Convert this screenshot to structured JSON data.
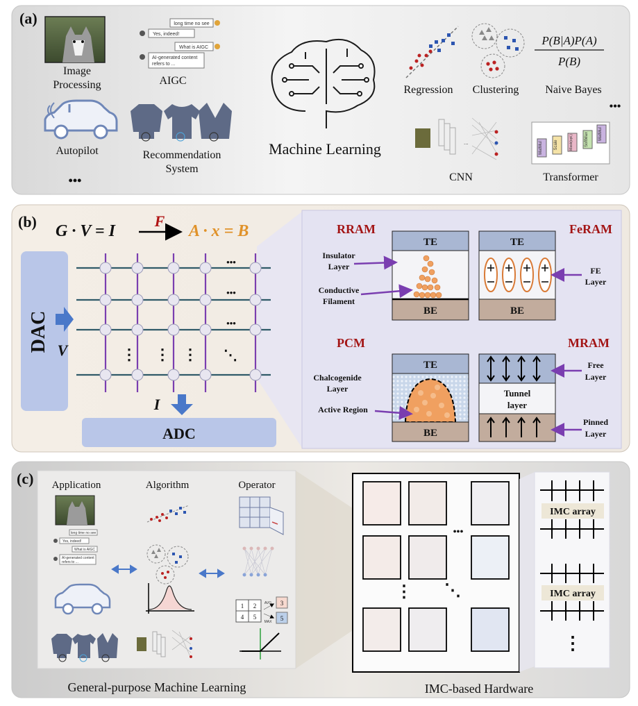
{
  "panel_a": {
    "label": "(a)",
    "center": "Machine Learning",
    "image_processing": [
      "Image",
      "Processing"
    ],
    "aigc": "AIGC",
    "autopilot": "Autopilot",
    "recsys": [
      "Recommendation",
      "System"
    ],
    "ellipsis": "•••",
    "chat": [
      "long time no see",
      "Yes, indeed!",
      "What is AIGC",
      "AI-generated content",
      "refers to ..."
    ],
    "regression": "Regression",
    "clustering": "Clustering",
    "naive_bayes": "Naive Bayes",
    "bayes_num": "P(B|A)P(A)",
    "bayes_den": "P(B)",
    "cnn": "CNN",
    "transformer": "Transformer",
    "tf_blocks": [
      "MatMul",
      "Scale",
      "Mask(opt.)",
      "SoftMax",
      "MatMul"
    ],
    "cnn_dots": "..."
  },
  "panel_b": {
    "label": "(b)",
    "eq_left": "G · V = I",
    "arrow_label": "F",
    "eq_right": "A · x = B",
    "dac": "DAC",
    "adc": "ADC",
    "v": "V",
    "i": "I",
    "dots_h": "•••",
    "dots_v": "⋮",
    "dots_d": "⋱",
    "rram": {
      "title": "RRAM",
      "te": "TE",
      "be": "BE",
      "ins1": "Insulator",
      "ins2": "Layer",
      "cond1": "Conductive",
      "cond2": "Filament"
    },
    "feram": {
      "title": "FeRAM",
      "te": "TE",
      "be": "BE",
      "fe1": "FE",
      "fe2": "Layer"
    },
    "pcm": {
      "title": "PCM",
      "te": "TE",
      "be": "BE",
      "ch1": "Chalcogenide",
      "ch2": "Layer",
      "active": "Active Region"
    },
    "mram": {
      "title": "MRAM",
      "free1": "Free",
      "free2": "Layer",
      "tunnel1": "Tunnel",
      "tunnel2": "layer",
      "pin1": "Pinned",
      "pin2": "Layer"
    }
  },
  "panel_c": {
    "label": "(c)",
    "application": "Application",
    "algorithm": "Algorithm",
    "operator": "Operator",
    "gp_ml": "General-purpose Machine Learning",
    "imc_hw": "IMC-based Hardware",
    "imc_array": "IMC array",
    "pool": [
      "1",
      "2",
      "4",
      "5",
      "3",
      "5"
    ],
    "avg": "AVG",
    "max": "MAX",
    "chat": [
      "long time no see",
      "Yes, indeed!",
      "What is AIGC",
      "AI-generated content",
      "refers to ..."
    ]
  }
}
